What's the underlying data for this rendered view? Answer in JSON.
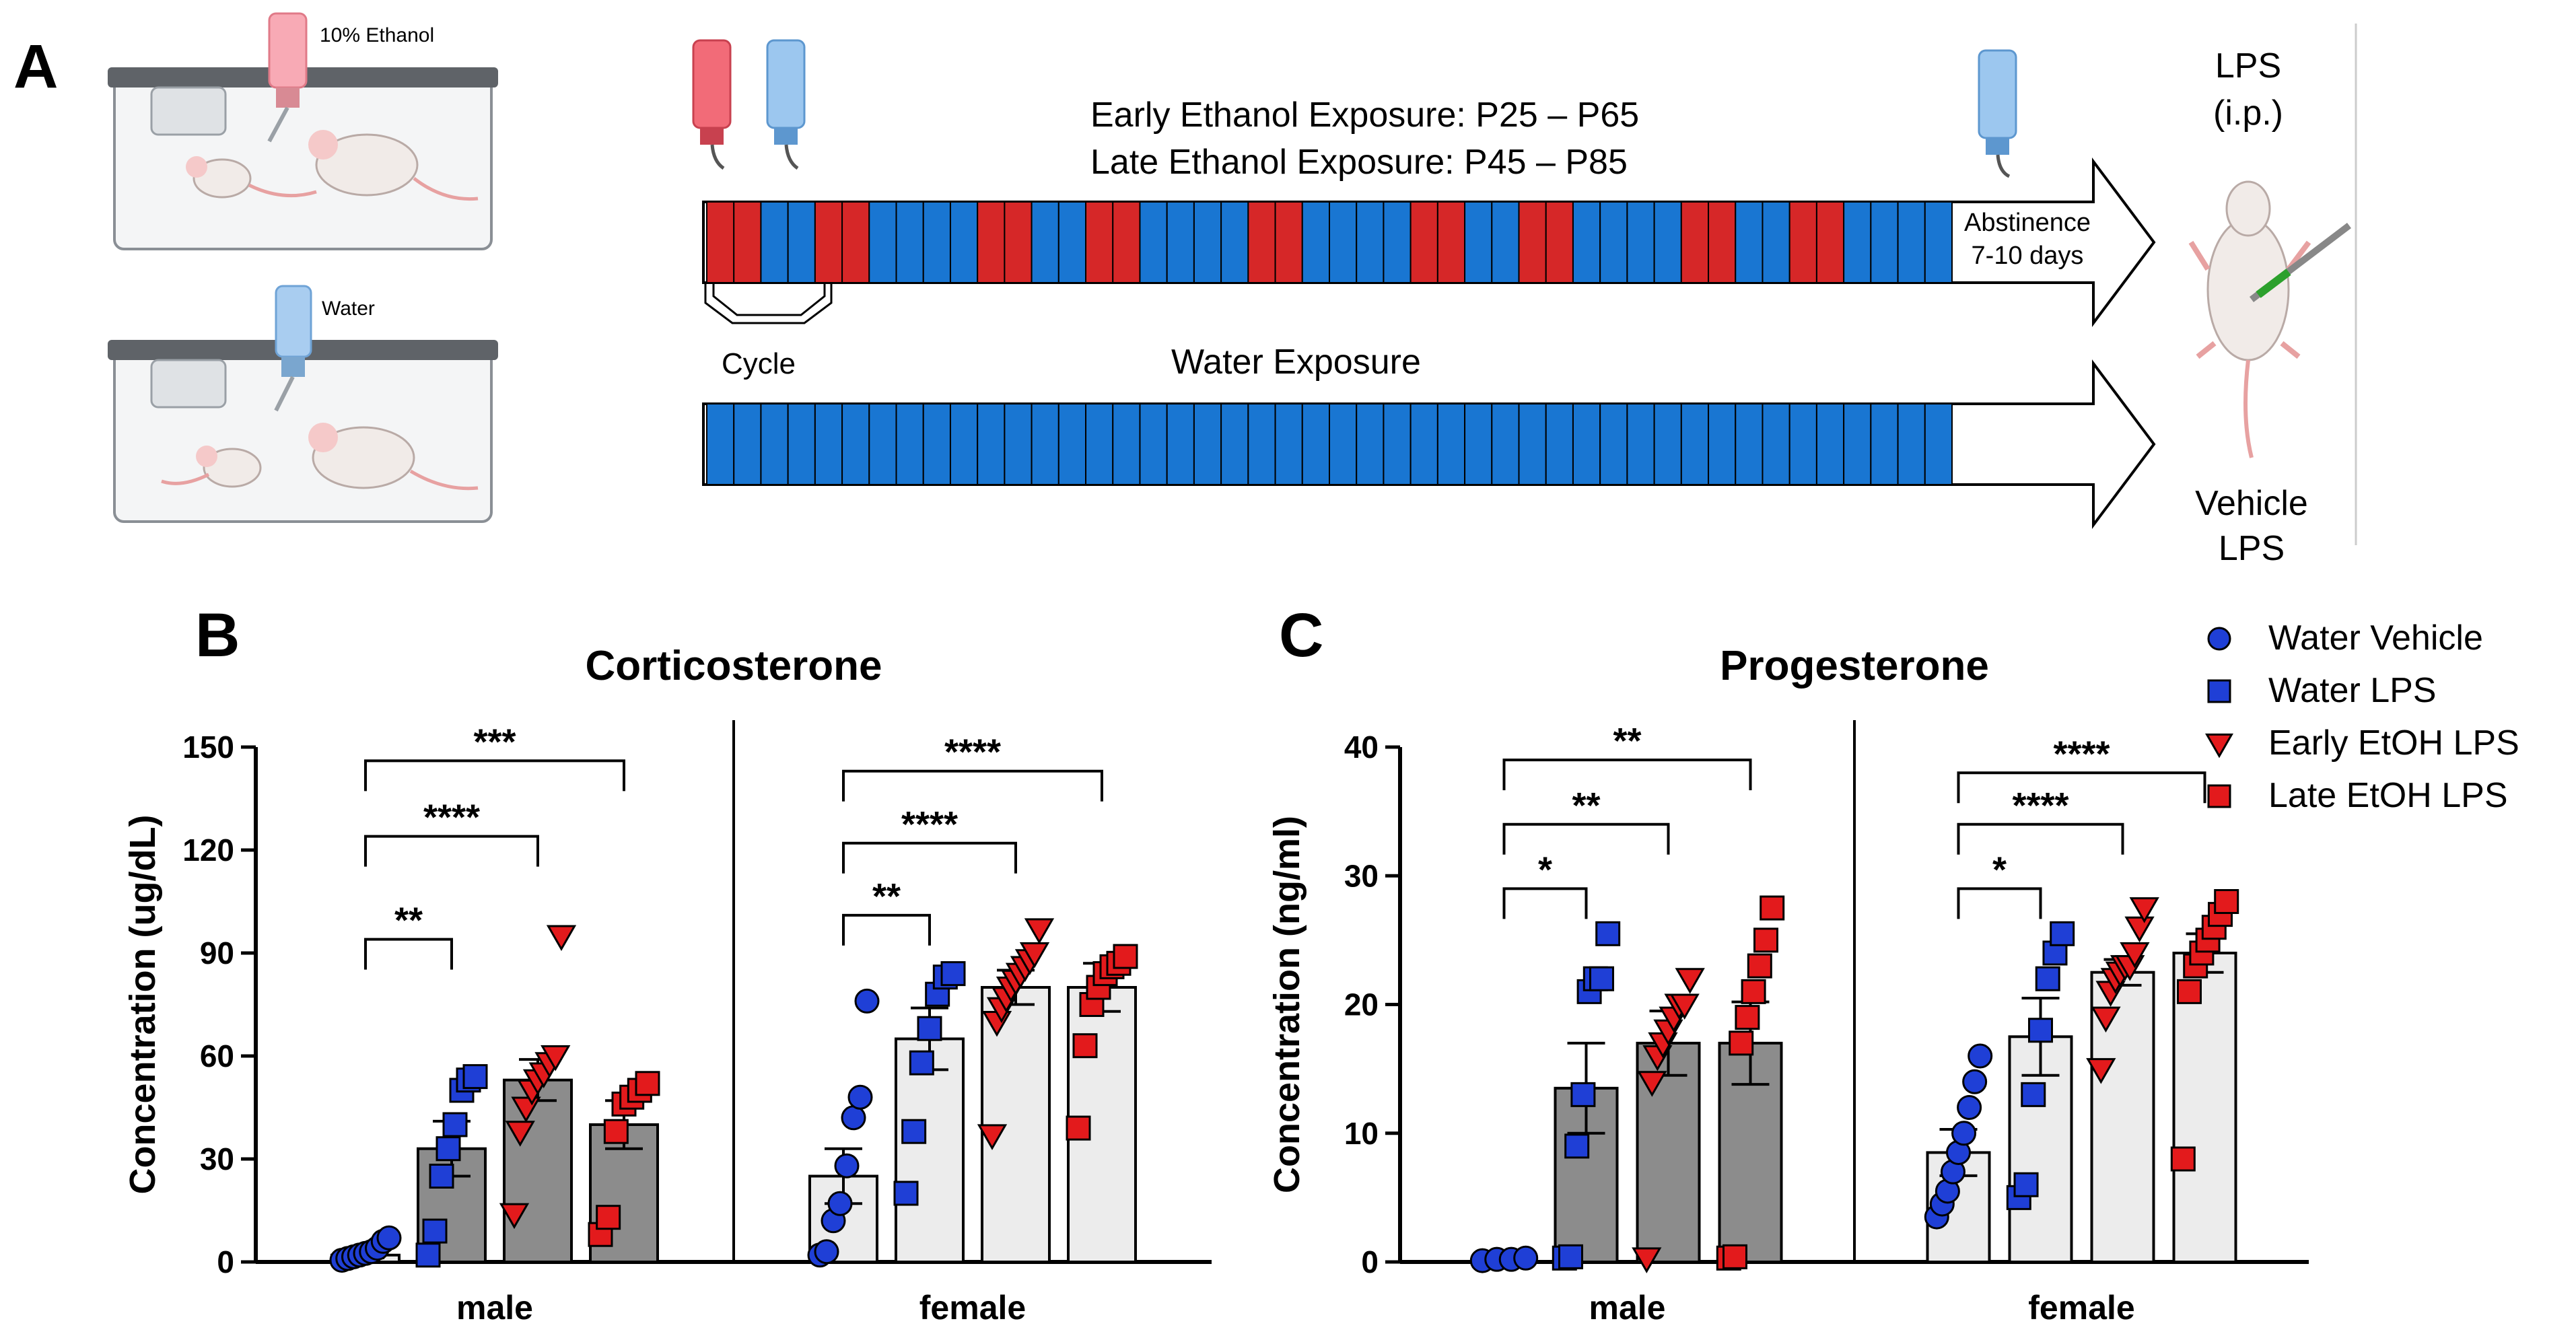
{
  "panel_letters": {
    "a": "A",
    "b": "B",
    "c": "C"
  },
  "schematic": {
    "cage_top_label": "10% Ethanol",
    "cage_bottom_label": "Water",
    "early_exposure": "Early Ethanol Exposure: P25 – P65",
    "late_exposure": "Late Ethanol Exposure: P45 – P85",
    "abstinence_line1": "Abstinence",
    "abstinence_line2": "7-10 days",
    "cycle_label": "Cycle",
    "water_exposure": "Water Exposure",
    "lps_line1": "LPS",
    "lps_line2": "(i.p.)",
    "vehicle_line1": "Vehicle",
    "vehicle_line2": "LPS",
    "ethanol_schedule": [
      "E",
      "E",
      "W",
      "W",
      "E",
      "E",
      "W",
      "W",
      "W",
      "W",
      "E",
      "E",
      "W",
      "W",
      "E",
      "E",
      "W",
      "W",
      "W",
      "W",
      "E",
      "E",
      "W",
      "W",
      "W",
      "W",
      "E",
      "E",
      "W",
      "W",
      "E",
      "E",
      "W",
      "W",
      "W",
      "W",
      "E",
      "E",
      "W",
      "W",
      "E",
      "E",
      "W",
      "W",
      "W",
      "W"
    ],
    "water_schedule_count": 46,
    "colors": {
      "ethanol": "#d62728",
      "water": "#1976d2"
    }
  },
  "legend": [
    {
      "label": "Water Vehicle",
      "marker": "circle",
      "color": "#1f3fd6"
    },
    {
      "label": "Water LPS",
      "marker": "square",
      "color": "#1f3fd6"
    },
    {
      "label": "Early EtOH LPS",
      "marker": "triangle-down",
      "color": "#e31a1c"
    },
    {
      "label": "Late EtOH LPS",
      "marker": "square",
      "color": "#e31a1c"
    }
  ],
  "chart_data": [
    {
      "type": "bar",
      "title": "Corticosterone",
      "ylabel": "Concentration (ug/dL)",
      "ylim": [
        0,
        150
      ],
      "yticks": [
        "0",
        "30",
        "60",
        "90",
        "120",
        "150"
      ],
      "groups": [
        "male",
        "female"
      ],
      "series_order": [
        "Water Vehicle",
        "Water LPS",
        "Early EtOH LPS",
        "Late EtOH LPS"
      ],
      "bars": [
        {
          "group": "male",
          "series": "Water Vehicle",
          "mean": 2,
          "sem": 0.8,
          "points": [
            0.5,
            1,
            1.5,
            2,
            2.5,
            3,
            4,
            6,
            7
          ]
        },
        {
          "group": "male",
          "series": "Water LPS",
          "mean": 33,
          "sem": 8,
          "points": [
            2,
            9,
            25,
            33,
            40,
            50,
            53,
            54
          ]
        },
        {
          "group": "male",
          "series": "Early EtOH LPS",
          "mean": 53,
          "sem": 6,
          "points": [
            14,
            38,
            45,
            50,
            53,
            55,
            58,
            60,
            95
          ]
        },
        {
          "group": "male",
          "series": "Late EtOH LPS",
          "mean": 40,
          "sem": 7,
          "points": [
            8,
            13,
            38,
            46,
            48,
            50,
            52
          ]
        },
        {
          "group": "female",
          "series": "Water Vehicle",
          "mean": 25,
          "sem": 8,
          "points": [
            2,
            3,
            12,
            17,
            28,
            42,
            48,
            76
          ]
        },
        {
          "group": "female",
          "series": "Water LPS",
          "mean": 65,
          "sem": 9,
          "points": [
            20,
            38,
            58,
            68,
            78,
            83,
            84
          ]
        },
        {
          "group": "female",
          "series": "Early EtOH LPS",
          "mean": 80,
          "sem": 5,
          "points": [
            37,
            70,
            74,
            77,
            80,
            82,
            84,
            86,
            88,
            90,
            97
          ]
        },
        {
          "group": "female",
          "series": "Late EtOH LPS",
          "mean": 80,
          "sem": 7,
          "points": [
            39,
            63,
            75,
            80,
            84,
            86,
            87,
            89
          ]
        }
      ],
      "annotations": [
        {
          "group": "male",
          "from": 0,
          "to": 1,
          "y": 94,
          "label": "**"
        },
        {
          "group": "male",
          "from": 0,
          "to": 2,
          "y": 124,
          "label": "****"
        },
        {
          "group": "male",
          "from": 0,
          "to": 3,
          "y": 146,
          "label": "***"
        },
        {
          "group": "female",
          "from": 0,
          "to": 1,
          "y": 101,
          "label": "**"
        },
        {
          "group": "female",
          "from": 0,
          "to": 2,
          "y": 122,
          "label": "****"
        },
        {
          "group": "female",
          "from": 0,
          "to": 3,
          "y": 143,
          "label": "****"
        }
      ]
    },
    {
      "type": "bar",
      "title": "Progesterone",
      "ylabel": "Concentration (ng/ml)",
      "ylim": [
        0,
        40
      ],
      "yticks": [
        "0",
        "10",
        "20",
        "30",
        "40"
      ],
      "groups": [
        "male",
        "female"
      ],
      "series_order": [
        "Water Vehicle",
        "Water LPS",
        "Early EtOH LPS",
        "Late EtOH LPS"
      ],
      "bars": [
        {
          "group": "male",
          "series": "Water Vehicle",
          "mean": 0.2,
          "sem": 0.05,
          "points": [
            0.1,
            0.2,
            0.2,
            0.3
          ]
        },
        {
          "group": "male",
          "series": "Water LPS",
          "mean": 13.5,
          "sem": 3.5,
          "points": [
            0.3,
            0.4,
            9,
            13,
            21,
            22,
            22,
            25.5
          ]
        },
        {
          "group": "male",
          "series": "Early EtOH LPS",
          "mean": 17,
          "sem": 2.5,
          "points": [
            0.3,
            14,
            16,
            17,
            18,
            19,
            20,
            20,
            22
          ]
        },
        {
          "group": "male",
          "series": "Late EtOH LPS",
          "mean": 17,
          "sem": 3.2,
          "points": [
            0.3,
            0.4,
            17,
            19,
            21,
            23,
            25,
            27.5
          ]
        },
        {
          "group": "female",
          "series": "Water Vehicle",
          "mean": 8.5,
          "sem": 1.8,
          "points": [
            3.5,
            4.5,
            5.5,
            7,
            8.5,
            10,
            12,
            14,
            16
          ]
        },
        {
          "group": "female",
          "series": "Water LPS",
          "mean": 17.5,
          "sem": 3,
          "points": [
            5,
            6,
            13,
            18,
            22,
            24,
            25.5
          ]
        },
        {
          "group": "female",
          "series": "Early EtOH LPS",
          "mean": 22.5,
          "sem": 1,
          "points": [
            15,
            19,
            21,
            22,
            22.5,
            23,
            23,
            24,
            26,
            27.5
          ]
        },
        {
          "group": "female",
          "series": "Late EtOH LPS",
          "mean": 24,
          "sem": 1.5,
          "points": [
            8,
            21,
            23,
            24,
            25,
            26,
            27,
            28
          ]
        }
      ],
      "annotations": [
        {
          "group": "male",
          "from": 0,
          "to": 1,
          "y": 29,
          "label": "*"
        },
        {
          "group": "male",
          "from": 0,
          "to": 2,
          "y": 34,
          "label": "**"
        },
        {
          "group": "male",
          "from": 0,
          "to": 3,
          "y": 39,
          "label": "**"
        },
        {
          "group": "female",
          "from": 0,
          "to": 1,
          "y": 29,
          "label": "*"
        },
        {
          "group": "female",
          "from": 0,
          "to": 2,
          "y": 34,
          "label": "****"
        },
        {
          "group": "female",
          "from": 0,
          "to": 3,
          "y": 38,
          "label": "****"
        }
      ]
    }
  ]
}
